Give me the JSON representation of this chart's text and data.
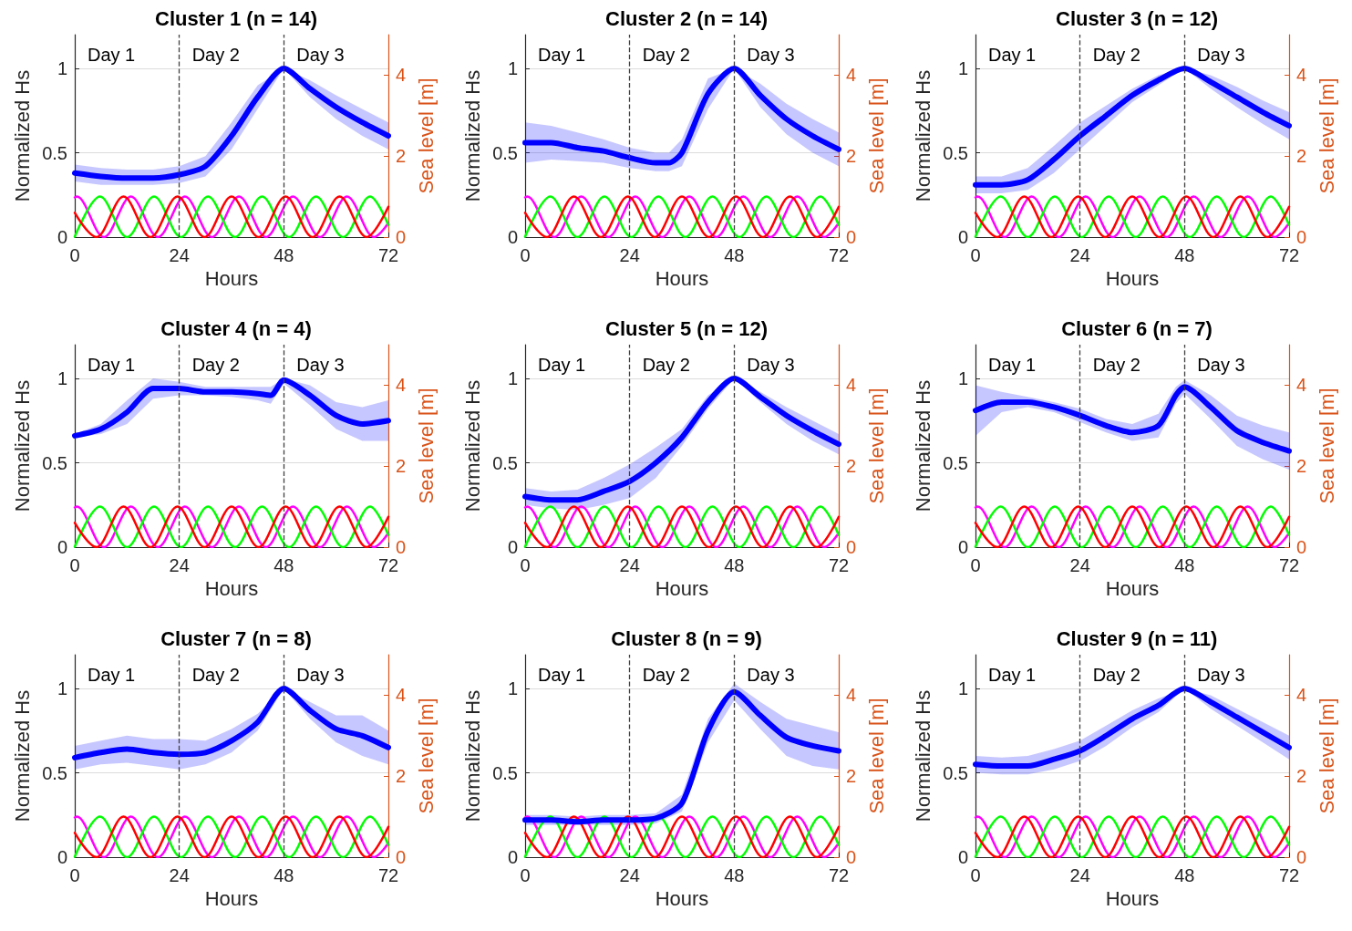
{
  "chart_data": [
    {
      "type": "line",
      "title": "Cluster 1 (n = 14)",
      "xlabel": "Hours",
      "ylabel": "Normalized Hs",
      "y2label": "Sea level [m]",
      "xlim": [
        0,
        72
      ],
      "xticks": [
        0,
        24,
        48,
        72
      ],
      "ylim": [
        0,
        1.2
      ],
      "yticks": [
        0,
        0.5,
        1
      ],
      "y2lim": [
        0,
        5
      ],
      "y2ticks": [
        0,
        2,
        4
      ],
      "grid": "y",
      "ref_lines": [
        {
          "axis": "x",
          "value": 24,
          "color": "#404040",
          "line_style": "dashed"
        },
        {
          "axis": "x",
          "value": 48,
          "color": "#404040",
          "line_style": "dashed"
        }
      ],
      "annotations": [
        "Day 1",
        "Day 2",
        "Day 3"
      ],
      "series": [
        {
          "color": "#ff00ff",
          "axis": "y2",
          "x": [
            0,
            0.5,
            6.7,
            12.9,
            19.1,
            25.3,
            31.5,
            37.7,
            43.9,
            50.1,
            56.3,
            62.5,
            68.7,
            72
          ],
          "values": [
            0.98,
            1,
            0,
            1,
            0,
            1,
            0,
            1,
            0,
            1,
            0,
            1,
            0,
            0.35
          ]
        },
        {
          "color": "#00ff00",
          "axis": "y2",
          "x": [
            0,
            5.8,
            12.0,
            18.2,
            24.4,
            30.6,
            36.8,
            43.0,
            49.2,
            55.4,
            61.6,
            67.8,
            72
          ],
          "values": [
            0.01,
            1,
            0,
            1,
            0,
            1,
            0,
            1,
            0,
            1,
            0,
            1,
            0.3
          ]
        },
        {
          "color": "#ff0000",
          "axis": "y2",
          "x": [
            0,
            5.0,
            11.2,
            17.4,
            23.6,
            29.8,
            36.0,
            42.2,
            48.4,
            54.6,
            60.8,
            67.0,
            72
          ],
          "values": [
            0.6,
            0,
            1,
            0,
            1,
            0,
            1,
            0,
            1,
            0,
            1,
            0,
            0.75
          ]
        },
        {
          "color": "#0000ff",
          "x": [
            0,
            6,
            12,
            18,
            24,
            30,
            36,
            42,
            48,
            54,
            60,
            66,
            72
          ],
          "values": [
            0.38,
            0.36,
            0.35,
            0.35,
            0.37,
            0.42,
            0.6,
            0.83,
            1.0,
            0.88,
            0.77,
            0.68,
            0.6
          ],
          "lower": [
            0.33,
            0.31,
            0.31,
            0.31,
            0.32,
            0.36,
            0.52,
            0.76,
            1.0,
            0.83,
            0.7,
            0.6,
            0.52
          ],
          "upper": [
            0.43,
            0.41,
            0.4,
            0.4,
            0.42,
            0.48,
            0.68,
            0.9,
            1.0,
            0.93,
            0.84,
            0.76,
            0.68
          ]
        }
      ]
    },
    {
      "type": "line",
      "title": "Cluster 2 (n = 14)",
      "xlabel": "Hours",
      "ylabel": "Normalized Hs",
      "y2label": "Sea level [m]",
      "xlim": [
        0,
        72
      ],
      "xticks": [
        0,
        24,
        48,
        72
      ],
      "ylim": [
        0,
        1.2
      ],
      "yticks": [
        0,
        0.5,
        1
      ],
      "y2lim": [
        0,
        5
      ],
      "y2ticks": [
        0,
        2,
        4
      ],
      "grid": "y",
      "ref_lines": [
        {
          "axis": "x",
          "value": 24,
          "color": "#404040",
          "line_style": "dashed"
        },
        {
          "axis": "x",
          "value": 48,
          "color": "#404040",
          "line_style": "dashed"
        }
      ],
      "annotations": [
        "Day 1",
        "Day 2",
        "Day 3"
      ],
      "series": [
        {
          "color": "#ff00ff",
          "axis": "y2",
          "x": [
            0,
            0.5,
            6.7,
            12.9,
            19.1,
            25.3,
            31.5,
            37.7,
            43.9,
            50.1,
            56.3,
            62.5,
            68.7,
            72
          ],
          "values": [
            0.98,
            1,
            0,
            1,
            0,
            1,
            0,
            1,
            0,
            1,
            0,
            1,
            0,
            0.35
          ]
        },
        {
          "color": "#00ff00",
          "axis": "y2",
          "x": [
            0,
            5.8,
            12.0,
            18.2,
            24.4,
            30.6,
            36.8,
            43.0,
            49.2,
            55.4,
            61.6,
            67.8,
            72
          ],
          "values": [
            0.01,
            1,
            0,
            1,
            0,
            1,
            0,
            1,
            0,
            1,
            0,
            1,
            0.3
          ]
        },
        {
          "color": "#ff0000",
          "axis": "y2",
          "x": [
            0,
            5.0,
            11.2,
            17.4,
            23.6,
            29.8,
            36.0,
            42.2,
            48.4,
            54.6,
            60.8,
            67.0,
            72
          ],
          "values": [
            0.6,
            0,
            1,
            0,
            1,
            0,
            1,
            0,
            1,
            0,
            1,
            0,
            0.75
          ]
        },
        {
          "color": "#0000ff",
          "x": [
            0,
            6,
            12,
            18,
            24,
            30,
            33,
            36,
            42,
            48,
            54,
            60,
            66,
            72
          ],
          "values": [
            0.56,
            0.56,
            0.53,
            0.51,
            0.47,
            0.44,
            0.44,
            0.5,
            0.85,
            1.0,
            0.84,
            0.7,
            0.6,
            0.52
          ],
          "lower": [
            0.44,
            0.46,
            0.45,
            0.44,
            0.41,
            0.39,
            0.39,
            0.42,
            0.76,
            1.0,
            0.77,
            0.61,
            0.5,
            0.42
          ],
          "upper": [
            0.68,
            0.66,
            0.62,
            0.58,
            0.53,
            0.5,
            0.5,
            0.58,
            0.94,
            1.0,
            0.91,
            0.79,
            0.7,
            0.62
          ]
        }
      ]
    },
    {
      "type": "line",
      "title": "Cluster 3 (n = 12)",
      "xlabel": "Hours",
      "ylabel": "Normalized Hs",
      "y2label": "Sea level [m]",
      "xlim": [
        0,
        72
      ],
      "xticks": [
        0,
        24,
        48,
        72
      ],
      "ylim": [
        0,
        1.2
      ],
      "yticks": [
        0,
        0.5,
        1
      ],
      "y2lim": [
        0,
        5
      ],
      "y2ticks": [
        0,
        2,
        4
      ],
      "grid": "y",
      "ref_lines": [
        {
          "axis": "x",
          "value": 24,
          "color": "#404040",
          "line_style": "dashed"
        },
        {
          "axis": "x",
          "value": 48,
          "color": "#404040",
          "line_style": "dashed"
        }
      ],
      "annotations": [
        "Day 1",
        "Day 2",
        "Day 3"
      ],
      "series": [
        {
          "color": "#ff00ff",
          "axis": "y2",
          "x": [
            0,
            0.5,
            6.7,
            12.9,
            19.1,
            25.3,
            31.5,
            37.7,
            43.9,
            50.1,
            56.3,
            62.5,
            68.7,
            72
          ],
          "values": [
            0.98,
            1,
            0,
            1,
            0,
            1,
            0,
            1,
            0,
            1,
            0,
            1,
            0,
            0.35
          ]
        },
        {
          "color": "#00ff00",
          "axis": "y2",
          "x": [
            0,
            5.8,
            12.0,
            18.2,
            24.4,
            30.6,
            36.8,
            43.0,
            49.2,
            55.4,
            61.6,
            67.8,
            72
          ],
          "values": [
            0.01,
            1,
            0,
            1,
            0,
            1,
            0,
            1,
            0,
            1,
            0,
            1,
            0.3
          ]
        },
        {
          "color": "#ff0000",
          "axis": "y2",
          "x": [
            0,
            5.0,
            11.2,
            17.4,
            23.6,
            29.8,
            36.0,
            42.2,
            48.4,
            54.6,
            60.8,
            67.0,
            72
          ],
          "values": [
            0.6,
            0,
            1,
            0,
            1,
            0,
            1,
            0,
            1,
            0,
            1,
            0,
            0.75
          ]
        },
        {
          "color": "#0000ff",
          "x": [
            0,
            6,
            12,
            18,
            24,
            30,
            36,
            42,
            48,
            54,
            60,
            66,
            72
          ],
          "values": [
            0.31,
            0.31,
            0.34,
            0.46,
            0.6,
            0.72,
            0.84,
            0.93,
            1.0,
            0.92,
            0.83,
            0.74,
            0.66
          ],
          "lower": [
            0.26,
            0.26,
            0.28,
            0.38,
            0.52,
            0.66,
            0.8,
            0.9,
            1.0,
            0.88,
            0.77,
            0.67,
            0.58
          ],
          "upper": [
            0.36,
            0.36,
            0.41,
            0.54,
            0.68,
            0.78,
            0.88,
            0.96,
            1.0,
            0.96,
            0.89,
            0.81,
            0.74
          ]
        }
      ]
    },
    {
      "type": "line",
      "title": "Cluster 4 (n = 4)",
      "xlabel": "Hours",
      "ylabel": "Normalized Hs",
      "y2label": "Sea level [m]",
      "xlim": [
        0,
        72
      ],
      "xticks": [
        0,
        24,
        48,
        72
      ],
      "ylim": [
        0,
        1.2
      ],
      "yticks": [
        0,
        0.5,
        1
      ],
      "y2lim": [
        0,
        5
      ],
      "y2ticks": [
        0,
        2,
        4
      ],
      "grid": "y",
      "ref_lines": [
        {
          "axis": "x",
          "value": 24,
          "color": "#404040",
          "line_style": "dashed"
        },
        {
          "axis": "x",
          "value": 48,
          "color": "#404040",
          "line_style": "dashed"
        }
      ],
      "annotations": [
        "Day 1",
        "Day 2",
        "Day 3"
      ],
      "series": [
        {
          "color": "#ff00ff",
          "axis": "y2",
          "x": [
            0,
            0.5,
            6.7,
            12.9,
            19.1,
            25.3,
            31.5,
            37.7,
            43.9,
            50.1,
            56.3,
            62.5,
            68.7,
            72
          ],
          "values": [
            0.98,
            1,
            0,
            1,
            0,
            1,
            0,
            1,
            0,
            1,
            0,
            1,
            0,
            0.35
          ]
        },
        {
          "color": "#00ff00",
          "axis": "y2",
          "x": [
            0,
            5.8,
            12.0,
            18.2,
            24.4,
            30.6,
            36.8,
            43.0,
            49.2,
            55.4,
            61.6,
            67.8,
            72
          ],
          "values": [
            0.01,
            1,
            0,
            1,
            0,
            1,
            0,
            1,
            0,
            1,
            0,
            1,
            0.3
          ]
        },
        {
          "color": "#ff0000",
          "axis": "y2",
          "x": [
            0,
            5.0,
            11.2,
            17.4,
            23.6,
            29.8,
            36.0,
            42.2,
            48.4,
            54.6,
            60.8,
            67.0,
            72
          ],
          "values": [
            0.6,
            0,
            1,
            0,
            1,
            0,
            1,
            0,
            1,
            0,
            1,
            0,
            0.75
          ]
        },
        {
          "color": "#0000ff",
          "x": [
            0,
            6,
            12,
            18,
            24,
            30,
            36,
            42,
            45,
            48,
            54,
            60,
            66,
            72
          ],
          "values": [
            0.66,
            0.7,
            0.8,
            0.94,
            0.94,
            0.92,
            0.92,
            0.91,
            0.9,
            0.99,
            0.9,
            0.78,
            0.73,
            0.75
          ],
          "lower": [
            0.65,
            0.67,
            0.73,
            0.88,
            0.9,
            0.9,
            0.89,
            0.87,
            0.85,
            0.97,
            0.84,
            0.7,
            0.63,
            0.63
          ],
          "upper": [
            0.67,
            0.73,
            0.87,
            1.0,
            0.98,
            0.95,
            0.95,
            0.95,
            0.95,
            1.0,
            0.96,
            0.86,
            0.83,
            0.87
          ]
        }
      ]
    },
    {
      "type": "line",
      "title": "Cluster 5 (n = 12)",
      "xlabel": "Hours",
      "ylabel": "Normalized Hs",
      "y2label": "Sea level [m]",
      "xlim": [
        0,
        72
      ],
      "xticks": [
        0,
        24,
        48,
        72
      ],
      "ylim": [
        0,
        1.2
      ],
      "yticks": [
        0,
        0.5,
        1
      ],
      "y2lim": [
        0,
        5
      ],
      "y2ticks": [
        0,
        2,
        4
      ],
      "grid": "y",
      "ref_lines": [
        {
          "axis": "x",
          "value": 24,
          "color": "#404040",
          "line_style": "dashed"
        },
        {
          "axis": "x",
          "value": 48,
          "color": "#404040",
          "line_style": "dashed"
        }
      ],
      "annotations": [
        "Day 1",
        "Day 2",
        "Day 3"
      ],
      "series": [
        {
          "color": "#ff00ff",
          "axis": "y2",
          "x": [
            0,
            0.5,
            6.7,
            12.9,
            19.1,
            25.3,
            31.5,
            37.7,
            43.9,
            50.1,
            56.3,
            62.5,
            68.7,
            72
          ],
          "values": [
            0.98,
            1,
            0,
            1,
            0,
            1,
            0,
            1,
            0,
            1,
            0,
            1,
            0,
            0.35
          ]
        },
        {
          "color": "#00ff00",
          "axis": "y2",
          "x": [
            0,
            5.8,
            12.0,
            18.2,
            24.4,
            30.6,
            36.8,
            43.0,
            49.2,
            55.4,
            61.6,
            67.8,
            72
          ],
          "values": [
            0.01,
            1,
            0,
            1,
            0,
            1,
            0,
            1,
            0,
            1,
            0,
            1,
            0.3
          ]
        },
        {
          "color": "#ff0000",
          "axis": "y2",
          "x": [
            0,
            5.0,
            11.2,
            17.4,
            23.6,
            29.8,
            36.0,
            42.2,
            48.4,
            54.6,
            60.8,
            67.0,
            72
          ],
          "values": [
            0.6,
            0,
            1,
            0,
            1,
            0,
            1,
            0,
            1,
            0,
            1,
            0,
            0.75
          ]
        },
        {
          "color": "#0000ff",
          "x": [
            0,
            6,
            12,
            18,
            24,
            30,
            36,
            42,
            48,
            54,
            60,
            66,
            72
          ],
          "values": [
            0.3,
            0.28,
            0.28,
            0.33,
            0.39,
            0.5,
            0.65,
            0.86,
            1.0,
            0.89,
            0.78,
            0.69,
            0.61
          ],
          "lower": [
            0.25,
            0.23,
            0.22,
            0.25,
            0.29,
            0.41,
            0.6,
            0.82,
            1.0,
            0.86,
            0.73,
            0.63,
            0.55
          ],
          "upper": [
            0.35,
            0.33,
            0.34,
            0.41,
            0.49,
            0.59,
            0.7,
            0.9,
            1.0,
            0.92,
            0.83,
            0.75,
            0.67
          ]
        }
      ]
    },
    {
      "type": "line",
      "title": "Cluster 6 (n = 7)",
      "xlabel": "Hours",
      "ylabel": "Normalized Hs",
      "y2label": "Sea level [m]",
      "xlim": [
        0,
        72
      ],
      "xticks": [
        0,
        24,
        48,
        72
      ],
      "ylim": [
        0,
        1.2
      ],
      "yticks": [
        0,
        0.5,
        1
      ],
      "y2lim": [
        0,
        5
      ],
      "y2ticks": [
        0,
        2,
        4
      ],
      "grid": "y",
      "ref_lines": [
        {
          "axis": "x",
          "value": 24,
          "color": "#404040",
          "line_style": "dashed"
        },
        {
          "axis": "x",
          "value": 48,
          "color": "#404040",
          "line_style": "dashed"
        }
      ],
      "annotations": [
        "Day 1",
        "Day 2",
        "Day 3"
      ],
      "series": [
        {
          "color": "#ff00ff",
          "axis": "y2",
          "x": [
            0,
            0.5,
            6.7,
            12.9,
            19.1,
            25.3,
            31.5,
            37.7,
            43.9,
            50.1,
            56.3,
            62.5,
            68.7,
            72
          ],
          "values": [
            0.98,
            1,
            0,
            1,
            0,
            1,
            0,
            1,
            0,
            1,
            0,
            1,
            0,
            0.35
          ]
        },
        {
          "color": "#00ff00",
          "axis": "y2",
          "x": [
            0,
            5.8,
            12.0,
            18.2,
            24.4,
            30.6,
            36.8,
            43.0,
            49.2,
            55.4,
            61.6,
            67.8,
            72
          ],
          "values": [
            0.01,
            1,
            0,
            1,
            0,
            1,
            0,
            1,
            0,
            1,
            0,
            1,
            0.3
          ]
        },
        {
          "color": "#ff0000",
          "axis": "y2",
          "x": [
            0,
            5.0,
            11.2,
            17.4,
            23.6,
            29.8,
            36.0,
            42.2,
            48.4,
            54.6,
            60.8,
            67.0,
            72
          ],
          "values": [
            0.6,
            0,
            1,
            0,
            1,
            0,
            1,
            0,
            1,
            0,
            1,
            0,
            0.75
          ]
        },
        {
          "color": "#0000ff",
          "x": [
            0,
            6,
            12,
            18,
            24,
            30,
            36,
            42,
            46,
            48,
            54,
            60,
            66,
            72
          ],
          "values": [
            0.81,
            0.86,
            0.86,
            0.83,
            0.78,
            0.72,
            0.68,
            0.72,
            0.9,
            0.95,
            0.83,
            0.69,
            0.62,
            0.57
          ],
          "lower": [
            0.66,
            0.8,
            0.83,
            0.8,
            0.74,
            0.68,
            0.63,
            0.65,
            0.85,
            0.91,
            0.76,
            0.6,
            0.52,
            0.46
          ],
          "upper": [
            0.96,
            0.92,
            0.89,
            0.86,
            0.82,
            0.76,
            0.73,
            0.79,
            0.95,
            0.99,
            0.9,
            0.78,
            0.72,
            0.68
          ]
        }
      ]
    },
    {
      "type": "line",
      "title": "Cluster 7 (n = 8)",
      "xlabel": "Hours",
      "ylabel": "Normalized Hs",
      "y2label": "Sea level [m]",
      "xlim": [
        0,
        72
      ],
      "xticks": [
        0,
        24,
        48,
        72
      ],
      "ylim": [
        0,
        1.2
      ],
      "yticks": [
        0,
        0.5,
        1
      ],
      "y2lim": [
        0,
        5
      ],
      "y2ticks": [
        0,
        2,
        4
      ],
      "grid": "y",
      "ref_lines": [
        {
          "axis": "x",
          "value": 24,
          "color": "#404040",
          "line_style": "dashed"
        },
        {
          "axis": "x",
          "value": 48,
          "color": "#404040",
          "line_style": "dashed"
        }
      ],
      "annotations": [
        "Day 1",
        "Day 2",
        "Day 3"
      ],
      "series": [
        {
          "color": "#ff00ff",
          "axis": "y2",
          "x": [
            0,
            0.5,
            6.7,
            12.9,
            19.1,
            25.3,
            31.5,
            37.7,
            43.9,
            50.1,
            56.3,
            62.5,
            68.7,
            72
          ],
          "values": [
            0.98,
            1,
            0,
            1,
            0,
            1,
            0,
            1,
            0,
            1,
            0,
            1,
            0,
            0.35
          ]
        },
        {
          "color": "#00ff00",
          "axis": "y2",
          "x": [
            0,
            5.8,
            12.0,
            18.2,
            24.4,
            30.6,
            36.8,
            43.0,
            49.2,
            55.4,
            61.6,
            67.8,
            72
          ],
          "values": [
            0.01,
            1,
            0,
            1,
            0,
            1,
            0,
            1,
            0,
            1,
            0,
            1,
            0.3
          ]
        },
        {
          "color": "#ff0000",
          "axis": "y2",
          "x": [
            0,
            5.0,
            11.2,
            17.4,
            23.6,
            29.8,
            36.0,
            42.2,
            48.4,
            54.6,
            60.8,
            67.0,
            72
          ],
          "values": [
            0.6,
            0,
            1,
            0,
            1,
            0,
            1,
            0,
            1,
            0,
            1,
            0,
            0.75
          ]
        },
        {
          "color": "#0000ff",
          "x": [
            0,
            6,
            12,
            18,
            24,
            30,
            36,
            42,
            48,
            54,
            60,
            66,
            72
          ],
          "values": [
            0.59,
            0.62,
            0.64,
            0.62,
            0.61,
            0.62,
            0.69,
            0.8,
            1.0,
            0.87,
            0.76,
            0.72,
            0.65
          ],
          "lower": [
            0.52,
            0.55,
            0.56,
            0.54,
            0.52,
            0.55,
            0.62,
            0.75,
            1.0,
            0.82,
            0.68,
            0.6,
            0.55
          ],
          "upper": [
            0.66,
            0.69,
            0.72,
            0.7,
            0.7,
            0.69,
            0.76,
            0.85,
            1.0,
            0.92,
            0.84,
            0.84,
            0.75
          ]
        }
      ]
    },
    {
      "type": "line",
      "title": "Cluster 8 (n = 9)",
      "xlabel": "Hours",
      "ylabel": "Normalized Hs",
      "y2label": "Sea level [m]",
      "xlim": [
        0,
        72
      ],
      "xticks": [
        0,
        24,
        48,
        72
      ],
      "ylim": [
        0,
        1.2
      ],
      "yticks": [
        0,
        0.5,
        1
      ],
      "y2lim": [
        0,
        5
      ],
      "y2ticks": [
        0,
        2,
        4
      ],
      "grid": "y",
      "ref_lines": [
        {
          "axis": "x",
          "value": 24,
          "color": "#404040",
          "line_style": "dashed"
        },
        {
          "axis": "x",
          "value": 48,
          "color": "#404040",
          "line_style": "dashed"
        }
      ],
      "annotations": [
        "Day 1",
        "Day 2",
        "Day 3"
      ],
      "series": [
        {
          "color": "#ff00ff",
          "axis": "y2",
          "x": [
            0,
            0.5,
            6.7,
            12.9,
            19.1,
            25.3,
            31.5,
            37.7,
            43.9,
            50.1,
            56.3,
            62.5,
            68.7,
            72
          ],
          "values": [
            0.98,
            1,
            0,
            1,
            0,
            1,
            0,
            1,
            0,
            1,
            0,
            1,
            0,
            0.35
          ]
        },
        {
          "color": "#00ff00",
          "axis": "y2",
          "x": [
            0,
            5.8,
            12.0,
            18.2,
            24.4,
            30.6,
            36.8,
            43.0,
            49.2,
            55.4,
            61.6,
            67.8,
            72
          ],
          "values": [
            0.01,
            1,
            0,
            1,
            0,
            1,
            0,
            1,
            0,
            1,
            0,
            1,
            0.3
          ]
        },
        {
          "color": "#ff0000",
          "axis": "y2",
          "x": [
            0,
            5.0,
            11.2,
            17.4,
            23.6,
            29.8,
            36.0,
            42.2,
            48.4,
            54.6,
            60.8,
            67.0,
            72
          ],
          "values": [
            0.6,
            0,
            1,
            0,
            1,
            0,
            1,
            0,
            1,
            0,
            1,
            0,
            0.75
          ]
        },
        {
          "color": "#0000ff",
          "x": [
            0,
            6,
            12,
            18,
            24,
            30,
            36,
            42,
            48,
            54,
            60,
            66,
            72
          ],
          "values": [
            0.22,
            0.22,
            0.21,
            0.22,
            0.22,
            0.23,
            0.32,
            0.75,
            0.98,
            0.84,
            0.71,
            0.66,
            0.63
          ],
          "lower": [
            0.19,
            0.19,
            0.19,
            0.19,
            0.19,
            0.2,
            0.27,
            0.68,
            0.93,
            0.76,
            0.6,
            0.54,
            0.52
          ],
          "upper": [
            0.25,
            0.25,
            0.24,
            0.25,
            0.25,
            0.26,
            0.37,
            0.82,
            1.03,
            0.92,
            0.82,
            0.78,
            0.74
          ]
        }
      ]
    },
    {
      "type": "line",
      "title": "Cluster 9 (n = 11)",
      "xlabel": "Hours",
      "ylabel": "Normalized Hs",
      "y2label": "Sea level [m]",
      "xlim": [
        0,
        72
      ],
      "xticks": [
        0,
        24,
        48,
        72
      ],
      "ylim": [
        0,
        1.2
      ],
      "yticks": [
        0,
        0.5,
        1
      ],
      "y2lim": [
        0,
        5
      ],
      "y2ticks": [
        0,
        2,
        4
      ],
      "grid": "y",
      "ref_lines": [
        {
          "axis": "x",
          "value": 24,
          "color": "#404040",
          "line_style": "dashed"
        },
        {
          "axis": "x",
          "value": 48,
          "color": "#404040",
          "line_style": "dashed"
        }
      ],
      "annotations": [
        "Day 1",
        "Day 2",
        "Day 3"
      ],
      "series": [
        {
          "color": "#ff00ff",
          "axis": "y2",
          "x": [
            0,
            0.5,
            6.7,
            12.9,
            19.1,
            25.3,
            31.5,
            37.7,
            43.9,
            50.1,
            56.3,
            62.5,
            68.7,
            72
          ],
          "values": [
            0.98,
            1,
            0,
            1,
            0,
            1,
            0,
            1,
            0,
            1,
            0,
            1,
            0,
            0.35
          ]
        },
        {
          "color": "#00ff00",
          "axis": "y2",
          "x": [
            0,
            5.8,
            12.0,
            18.2,
            24.4,
            30.6,
            36.8,
            43.0,
            49.2,
            55.4,
            61.6,
            67.8,
            72
          ],
          "values": [
            0.01,
            1,
            0,
            1,
            0,
            1,
            0,
            1,
            0,
            1,
            0,
            1,
            0.3
          ]
        },
        {
          "color": "#ff0000",
          "axis": "y2",
          "x": [
            0,
            5.0,
            11.2,
            17.4,
            23.6,
            29.8,
            36.0,
            42.2,
            48.4,
            54.6,
            60.8,
            67.0,
            72
          ],
          "values": [
            0.6,
            0,
            1,
            0,
            1,
            0,
            1,
            0,
            1,
            0,
            1,
            0,
            0.75
          ]
        },
        {
          "color": "#0000ff",
          "x": [
            0,
            6,
            12,
            18,
            24,
            30,
            36,
            42,
            48,
            54,
            60,
            66,
            72
          ],
          "values": [
            0.55,
            0.54,
            0.54,
            0.58,
            0.63,
            0.72,
            0.82,
            0.9,
            1.0,
            0.92,
            0.83,
            0.74,
            0.65
          ],
          "lower": [
            0.5,
            0.49,
            0.49,
            0.52,
            0.57,
            0.66,
            0.77,
            0.86,
            1.0,
            0.88,
            0.78,
            0.68,
            0.58
          ],
          "upper": [
            0.6,
            0.59,
            0.6,
            0.64,
            0.69,
            0.78,
            0.87,
            0.94,
            1.0,
            0.96,
            0.88,
            0.8,
            0.72
          ]
        }
      ]
    }
  ]
}
